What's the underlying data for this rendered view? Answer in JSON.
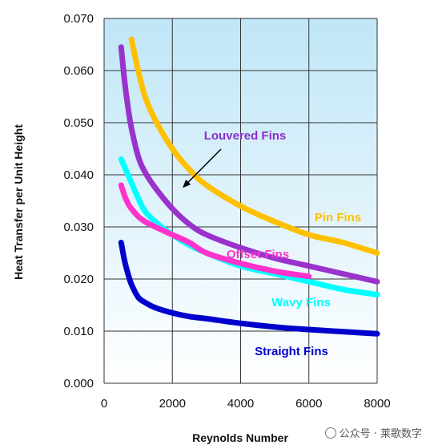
{
  "chart_data": {
    "type": "line",
    "title": "",
    "xlabel": "Reynolds Number",
    "ylabel": "Heat Transfer per Unit Height",
    "xlim": [
      0,
      8000
    ],
    "ylim": [
      0,
      0.07
    ],
    "xticks": [
      0,
      2000,
      4000,
      6000,
      8000
    ],
    "xtick_labels": [
      "0",
      "2000",
      "4000",
      "6000",
      "8000"
    ],
    "yticks": [
      0,
      0.01,
      0.02,
      0.03,
      0.04,
      0.05,
      0.06,
      0.07
    ],
    "ytick_labels": [
      "0.000",
      "0.010",
      "0.020",
      "0.030",
      "0.040",
      "0.050",
      "0.060",
      "0.070"
    ],
    "grid": true,
    "legend": "inline labels",
    "series": [
      {
        "name": "Pin Fins",
        "color": "#FFC000",
        "x": [
          800,
          1000,
          1200,
          1500,
          2000,
          2500,
          3000,
          4000,
          5000,
          6000,
          7000,
          8000
        ],
        "y": [
          0.066,
          0.06,
          0.055,
          0.0505,
          0.045,
          0.041,
          0.038,
          0.034,
          0.031,
          0.0285,
          0.027,
          0.025
        ]
      },
      {
        "name": "Louvered Fins",
        "color": "#9933CC",
        "x": [
          500,
          600,
          700,
          800,
          1000,
          1200,
          1500,
          2000,
          2500,
          3000,
          4000,
          5000,
          6000,
          7000,
          8000
        ],
        "y": [
          0.0645,
          0.058,
          0.053,
          0.049,
          0.0435,
          0.0405,
          0.0375,
          0.0335,
          0.0305,
          0.0285,
          0.026,
          0.024,
          0.0225,
          0.021,
          0.0195
        ]
      },
      {
        "name": "Wavy Fins",
        "color": "#00FFFF",
        "x": [
          500,
          600,
          700,
          800,
          1000,
          1200,
          1500,
          2000,
          2500,
          3000,
          4000,
          5000,
          6000,
          7000,
          8000
        ],
        "y": [
          0.043,
          0.0415,
          0.04,
          0.0385,
          0.0355,
          0.033,
          0.031,
          0.0285,
          0.0265,
          0.025,
          0.0225,
          0.021,
          0.0195,
          0.018,
          0.017
        ]
      },
      {
        "name": "Offset Fins",
        "color": "#FF33CC",
        "x": [
          500,
          600,
          700,
          800,
          1000,
          1200,
          1500,
          2000,
          2500,
          3000,
          4000,
          5000,
          6000
        ],
        "y": [
          0.038,
          0.036,
          0.0345,
          0.0335,
          0.032,
          0.031,
          0.03,
          0.0285,
          0.027,
          0.025,
          0.023,
          0.0215,
          0.0205
        ]
      },
      {
        "name": "Straight Fins",
        "color": "#0000CC",
        "x": [
          500,
          600,
          700,
          800,
          1000,
          1200,
          1500,
          2000,
          2500,
          3000,
          4000,
          5000,
          6000,
          7000,
          8000
        ],
        "y": [
          0.027,
          0.0235,
          0.021,
          0.019,
          0.0165,
          0.0155,
          0.0145,
          0.0135,
          0.0128,
          0.0124,
          0.0115,
          0.0108,
          0.0103,
          0.0099,
          0.0095
        ]
      }
    ],
    "annotation": {
      "text": "Louvered Fins",
      "points_to": {
        "x": 2300,
        "y": 0.0375
      }
    }
  },
  "watermark": {
    "text": "公众号 · 莱歌数字"
  }
}
